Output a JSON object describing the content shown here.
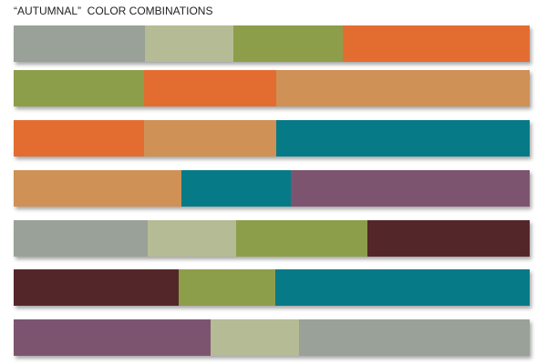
{
  "title": "“AUTUMNAL”  COLOR COMBINATIONS",
  "rows": [
    {
      "colors": [
        "#99a198",
        "#b5bb95",
        "#8d9e4a",
        "#e36d30"
      ]
    },
    {
      "colors": [
        "#8d9e4a",
        "#e36d30",
        "#cf9155"
      ]
    },
    {
      "colors": [
        "#e36d30",
        "#cf9155",
        "#077a87"
      ]
    },
    {
      "colors": [
        "#cf9155",
        "#077a87",
        "#7d5470"
      ]
    },
    {
      "colors": [
        "#99a198",
        "#b5bb95",
        "#8d9e4a",
        "#532729"
      ]
    },
    {
      "colors": [
        "#532729",
        "#8d9e4a",
        "#077a87"
      ]
    },
    {
      "colors": [
        "#7d5470",
        "#b5bb95",
        "#99a198"
      ]
    }
  ]
}
